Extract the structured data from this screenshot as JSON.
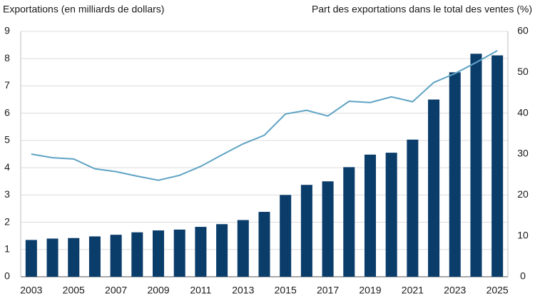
{
  "chart_data": {
    "type": "bar",
    "y_label": "Exportations (en milliards de dollars)",
    "y2_label": "Part des exportations dans le total des ventes (%)",
    "categories": [
      "2003",
      null,
      "2005",
      null,
      "2007",
      null,
      "2009",
      null,
      "2011",
      null,
      "2013",
      null,
      "2015",
      null,
      "2017",
      null,
      "2019",
      null,
      "2021",
      null,
      "2023",
      null,
      "2025"
    ],
    "series": [
      {
        "type": "bar",
        "color": "#0b3d6b",
        "values": [
          1.35,
          1.4,
          1.42,
          1.48,
          1.54,
          1.63,
          1.7,
          1.73,
          1.83,
          1.93,
          2.08,
          2.38,
          3.0,
          3.37,
          3.5,
          4.02,
          4.48,
          4.55,
          5.03,
          6.5,
          7.5,
          8.18,
          8.12
        ]
      },
      {
        "type": "line",
        "axis": "y2",
        "color": "#5fa3c4",
        "values": [
          30.0,
          29.1,
          28.8,
          26.4,
          25.7,
          24.6,
          23.6,
          24.8,
          27.0,
          29.8,
          32.5,
          34.6,
          39.8,
          40.7,
          39.3,
          42.9,
          42.6,
          44.0,
          42.8,
          47.5,
          49.7,
          52.4,
          55.3
        ]
      }
    ],
    "ylim": [
      0,
      9
    ],
    "yticks": [
      0,
      1,
      2,
      3,
      4,
      5,
      6,
      7,
      8,
      9
    ],
    "y2lim": [
      0,
      60
    ],
    "y2ticks": [
      0,
      10,
      20,
      30,
      40,
      50,
      60
    ],
    "grid": true
  }
}
